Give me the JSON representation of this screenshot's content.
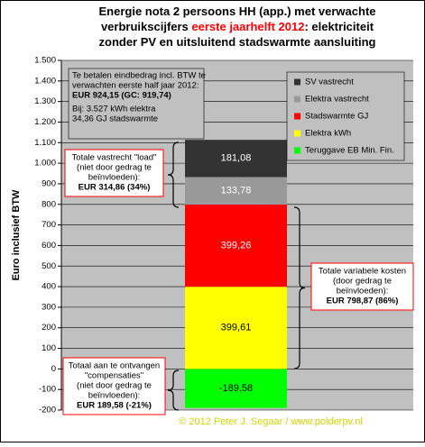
{
  "chart_data": {
    "type": "stacked_bar",
    "title": [
      [
        "Energie nota 2 persoons HH (app.) met verwachte"
      ],
      [
        "verbruikscijfers ",
        "eerste jaarhelft 2012",
        ": elektriciteit"
      ],
      [
        "zonder PV en uitsluitend stadswarmte aansluiting"
      ]
    ],
    "title_highlight_color": "#ff0000",
    "y_label": "Euro inclusief BTW",
    "ylim": [
      -200,
      1500
    ],
    "yticks": [
      -200,
      -100,
      0,
      100,
      200,
      300,
      400,
      500,
      600,
      700,
      800,
      900,
      {
        "value": 1000,
        "label": "1.000"
      },
      {
        "value": 1100,
        "label": "1.100"
      },
      {
        "value": 1200,
        "label": "1.200"
      },
      {
        "value": 1300,
        "label": "1.300"
      },
      {
        "value": 1400,
        "label": "1.400"
      },
      {
        "value": 1500,
        "label": "1.500"
      }
    ],
    "grid": true,
    "series": [
      {
        "name": "SV vastrecht",
        "color": "#333333",
        "values": [
          181.08
        ],
        "value_labels": [
          "181,08"
        ]
      },
      {
        "name": "Elektra vastrecht",
        "color": "#999999",
        "values": [
          133.78
        ],
        "value_labels": [
          "133,78"
        ]
      },
      {
        "name": "Stadswarmte GJ",
        "color": "#ff0000",
        "values": [
          399.26
        ],
        "value_labels": [
          "399,26"
        ]
      },
      {
        "name": "Elektra kWh",
        "color": "#ffff00",
        "values": [
          399.61
        ],
        "value_labels": [
          "399,61"
        ]
      },
      {
        "name": "Teruggave EB Min. Fin.",
        "color": "#00ff00",
        "values": [
          -189.58
        ],
        "value_labels": [
          "-189,58"
        ]
      }
    ],
    "info_box": {
      "text": [
        "Te betalen eindbedrag incl. BTW te",
        "verwachten eerste half jaar 2012:"
      ],
      "total": "EUR 924,15 (GC: 919,74)",
      "details": [
        "Bij: 3.527 kWh elektra",
        "34,36 GJ stadswarmte"
      ]
    },
    "callouts": [
      {
        "text": [
          "Totale vastrecht \"load\"",
          "(niet door gedrag te",
          "beïnvloeden):"
        ],
        "total": "EUR 314,86 (34%)"
      },
      {
        "text": [
          "Totale variabele kosten",
          "(door gedrag te",
          "beïnvloeden):"
        ],
        "total": "EUR 798,87 (86%)"
      },
      {
        "text": [
          "Totaal aan te ontvangen",
          "\"compensaties\"",
          "(niet door gedrag te",
          "beïnvloeden):"
        ],
        "total": "EUR 189,58 (-21%)"
      }
    ],
    "copyright": "© 2012 Peter J. Segaar / www.polderpv.nl"
  }
}
